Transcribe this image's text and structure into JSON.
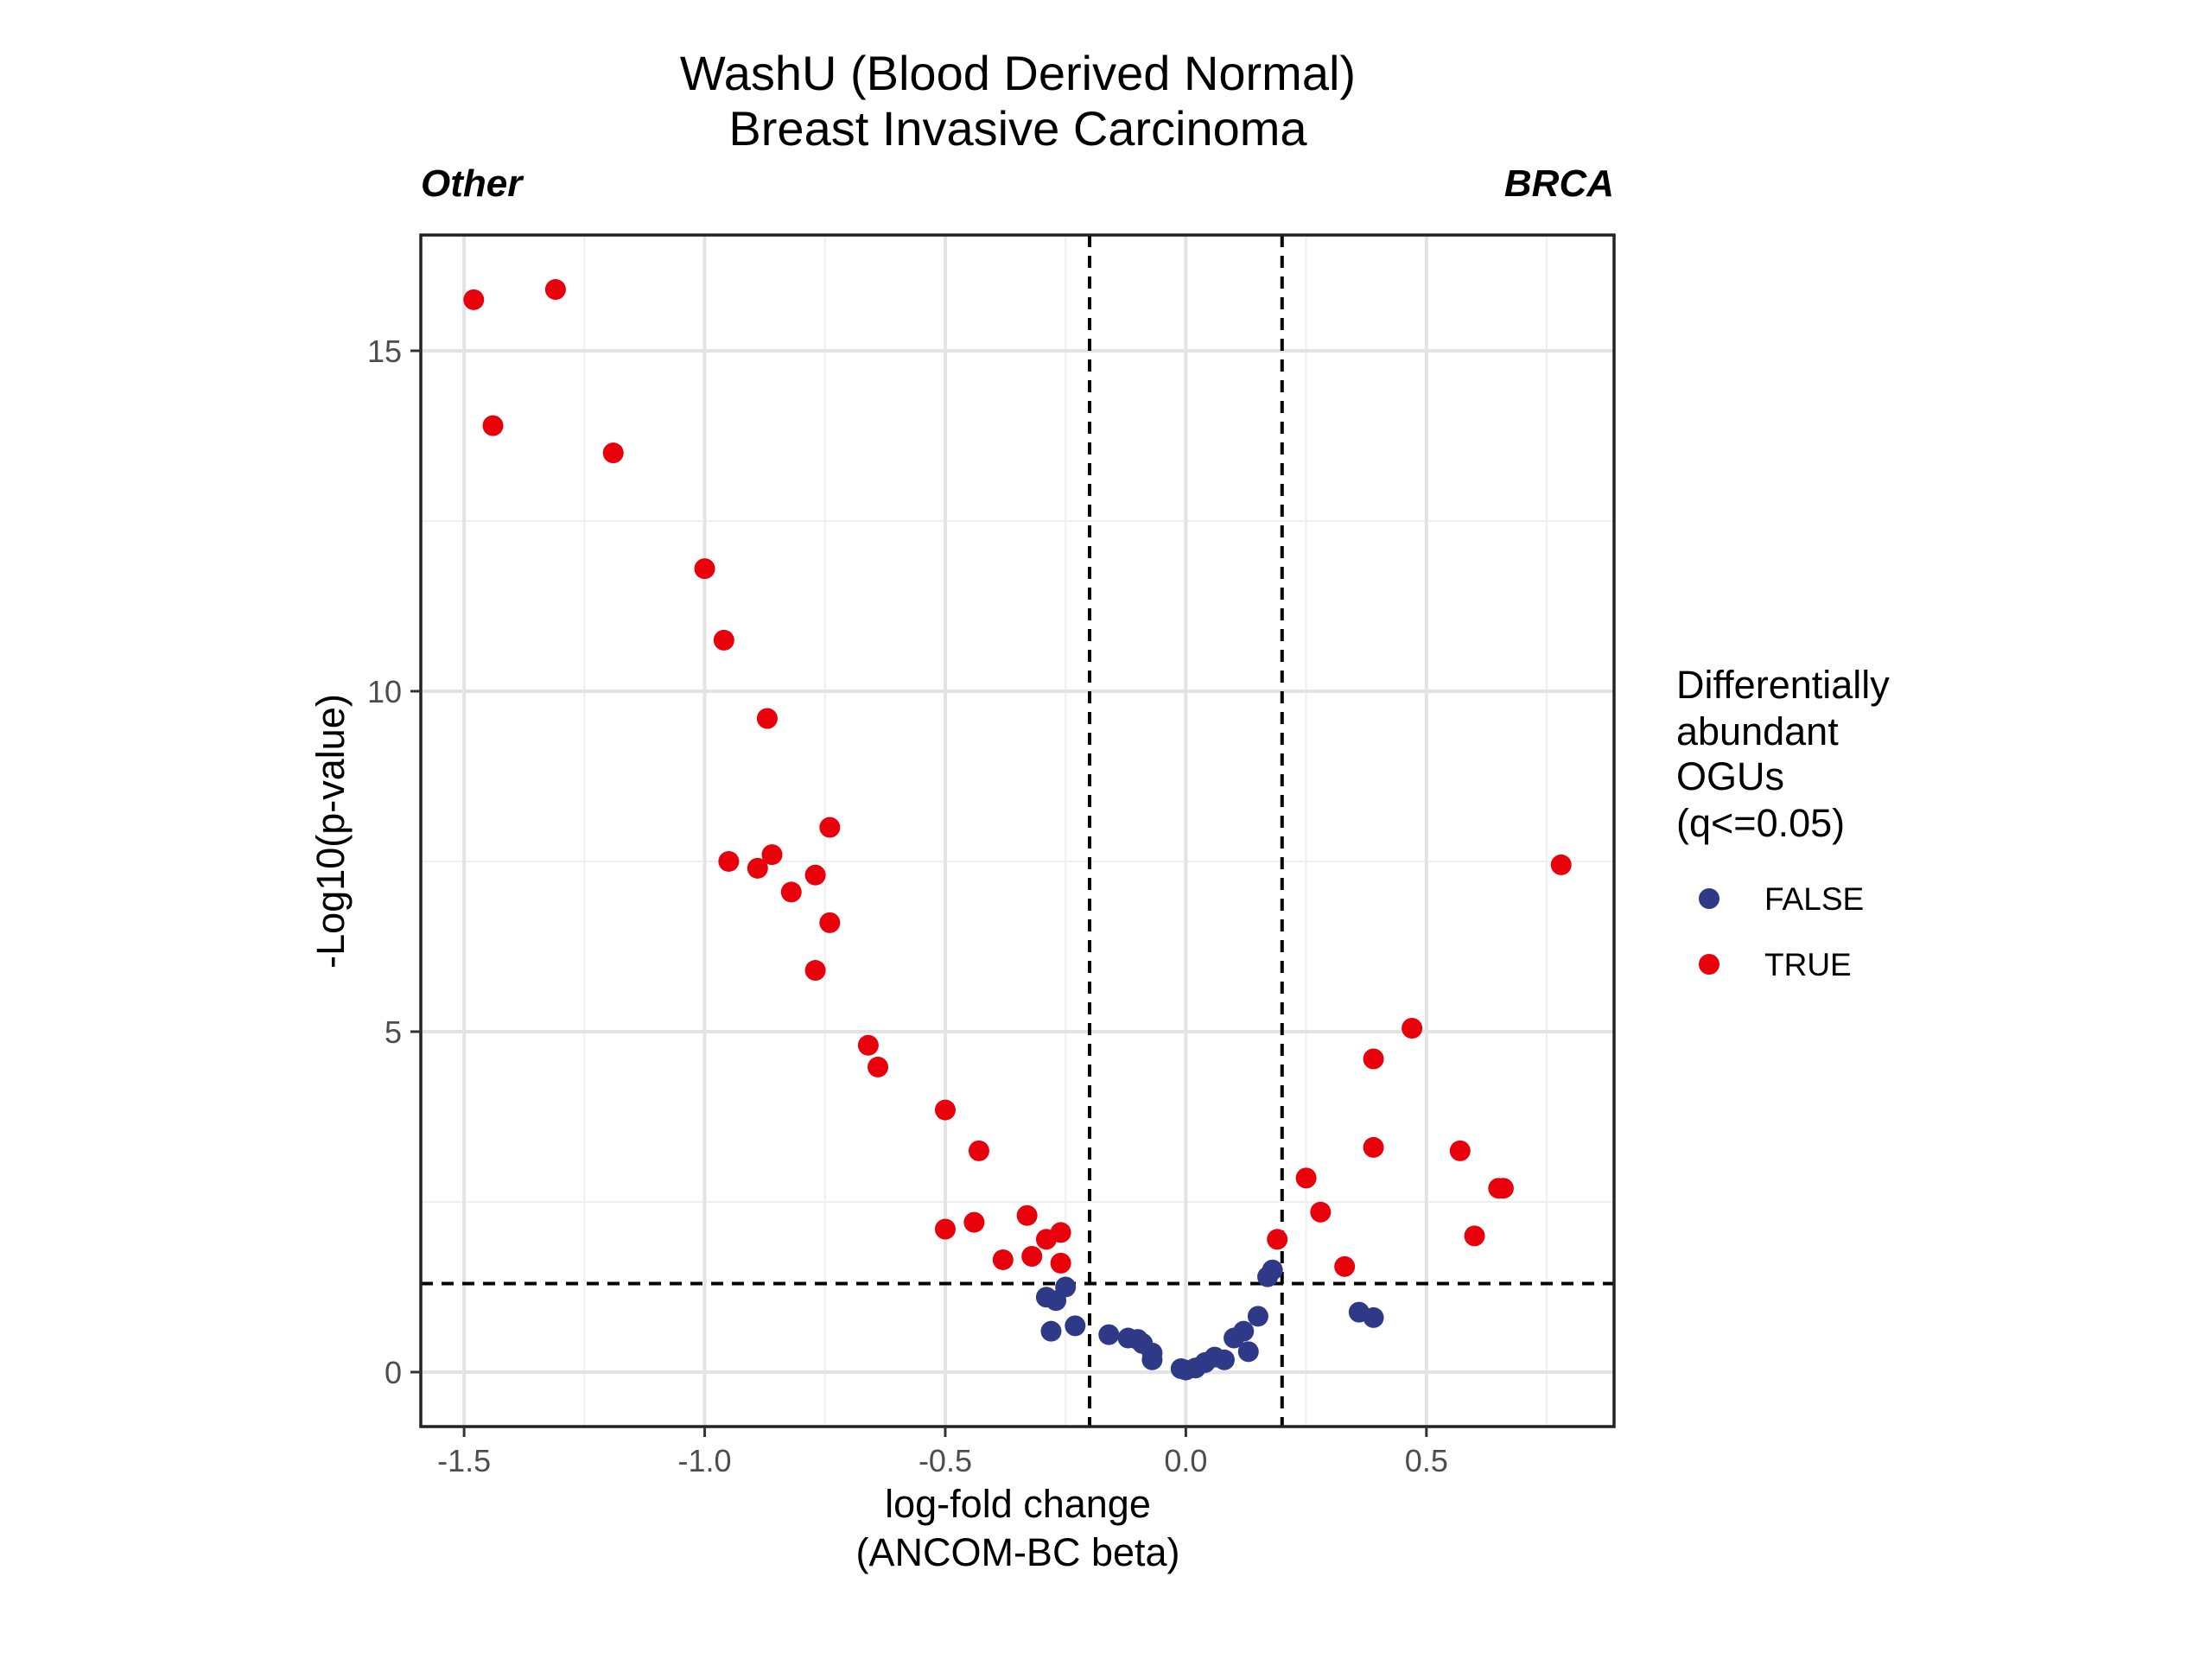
{
  "chart_data": {
    "type": "scatter",
    "title": [
      "WashU (Blood Derived Normal)",
      "Breast Invasive Carcinoma"
    ],
    "left_label": "Other",
    "right_label": "BRCA",
    "xlabel": [
      "log-fold change",
      "(ANCOM-BC beta)"
    ],
    "ylabel": "-Log10(p-value)",
    "xlim": [
      -1.59,
      0.89
    ],
    "ylim": [
      -0.8,
      16.7
    ],
    "x_ticks": [
      -1.5,
      -1.0,
      -0.5,
      0.0,
      0.5
    ],
    "x_tick_labels": [
      "-1.5",
      "-1.0",
      "-0.5",
      "0.0",
      "0.5"
    ],
    "y_ticks": [
      0,
      5,
      10,
      15
    ],
    "y_tick_labels": [
      "0",
      "5",
      "10",
      "15"
    ],
    "grid": true,
    "reference_lines": {
      "vertical": [
        -0.2,
        0.2
      ],
      "horizontal": [
        1.3
      ]
    },
    "legend": {
      "position": "right",
      "title": [
        "Differentially",
        "abundant",
        "OGUs",
        "(q<=0.05)"
      ],
      "entries": [
        {
          "label": "FALSE",
          "color": "#2e3a87"
        },
        {
          "label": "TRUE",
          "color": "#e8000b"
        }
      ]
    },
    "series": [
      {
        "name": "FALSE",
        "color": "#2e3a87",
        "points": [
          [
            -0.29,
            1.1
          ],
          [
            -0.27,
            1.05
          ],
          [
            -0.25,
            1.25
          ],
          [
            -0.28,
            0.6
          ],
          [
            -0.23,
            0.68
          ],
          [
            -0.16,
            0.55
          ],
          [
            -0.12,
            0.5
          ],
          [
            -0.1,
            0.48
          ],
          [
            -0.09,
            0.42
          ],
          [
            -0.07,
            0.28
          ],
          [
            -0.07,
            0.18
          ],
          [
            -0.01,
            0.05
          ],
          [
            0.0,
            0.03
          ],
          [
            0.02,
            0.06
          ],
          [
            0.04,
            0.14
          ],
          [
            0.06,
            0.22
          ],
          [
            0.08,
            0.18
          ],
          [
            0.1,
            0.5
          ],
          [
            0.12,
            0.6
          ],
          [
            0.13,
            0.3
          ],
          [
            0.15,
            0.82
          ],
          [
            0.17,
            1.4
          ],
          [
            0.18,
            1.5
          ],
          [
            0.36,
            0.88
          ],
          [
            0.39,
            0.8
          ]
        ]
      },
      {
        "name": "TRUE",
        "color": "#e8000b",
        "points": [
          [
            -1.48,
            15.75
          ],
          [
            -1.31,
            15.9
          ],
          [
            -1.44,
            13.9
          ],
          [
            -1.19,
            13.5
          ],
          [
            -1.0,
            11.8
          ],
          [
            -0.96,
            10.75
          ],
          [
            -0.87,
            9.6
          ],
          [
            -0.74,
            8.0
          ],
          [
            -0.95,
            7.5
          ],
          [
            -0.86,
            7.6
          ],
          [
            -0.89,
            7.4
          ],
          [
            -0.77,
            7.3
          ],
          [
            -0.82,
            7.05
          ],
          [
            -0.74,
            6.6
          ],
          [
            -0.77,
            5.9
          ],
          [
            -0.66,
            4.8
          ],
          [
            -0.64,
            4.48
          ],
          [
            -0.5,
            3.85
          ],
          [
            -0.43,
            3.25
          ],
          [
            -0.5,
            2.1
          ],
          [
            -0.44,
            2.2
          ],
          [
            -0.33,
            2.3
          ],
          [
            -0.32,
            1.7
          ],
          [
            -0.29,
            1.95
          ],
          [
            -0.26,
            2.05
          ],
          [
            -0.38,
            1.65
          ],
          [
            -0.26,
            1.6
          ],
          [
            0.19,
            1.95
          ],
          [
            0.25,
            2.85
          ],
          [
            0.28,
            2.35
          ],
          [
            0.33,
            1.55
          ],
          [
            0.39,
            4.6
          ],
          [
            0.39,
            3.3
          ],
          [
            0.47,
            5.05
          ],
          [
            0.57,
            3.25
          ],
          [
            0.6,
            2.0
          ],
          [
            0.65,
            2.7
          ],
          [
            0.66,
            2.7
          ],
          [
            0.78,
            7.45
          ]
        ]
      }
    ]
  }
}
